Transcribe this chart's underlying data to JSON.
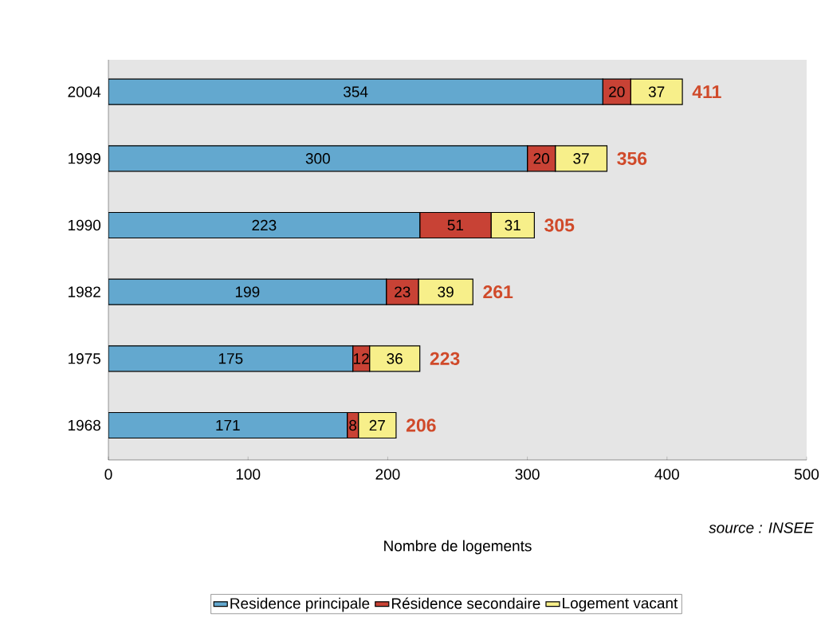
{
  "chart_data": {
    "type": "bar",
    "orientation": "horizontal",
    "stacked": true,
    "categories": [
      "2004",
      "1999",
      "1990",
      "1982",
      "1975",
      "1968"
    ],
    "series": [
      {
        "name": "Residence principale",
        "color": "#63a8cf",
        "values": [
          354,
          300,
          223,
          199,
          175,
          171
        ]
      },
      {
        "name": "Résidence secondaire",
        "color": "#c84235",
        "values": [
          20,
          20,
          51,
          23,
          12,
          8
        ]
      },
      {
        "name": "Logement vacant",
        "color": "#f7ef8a",
        "values": [
          37,
          37,
          31,
          39,
          36,
          27
        ]
      }
    ],
    "totals": [
      "411",
      "356",
      "305",
      "261",
      "223",
      "206"
    ],
    "data_labels": true,
    "xlim": [
      0,
      500
    ],
    "xticks": [
      0,
      100,
      200,
      300,
      400,
      500
    ],
    "xlabel": "Nombre de logements",
    "annotations": [
      "source : INSEE"
    ],
    "legend": "bottom",
    "grid": false
  }
}
